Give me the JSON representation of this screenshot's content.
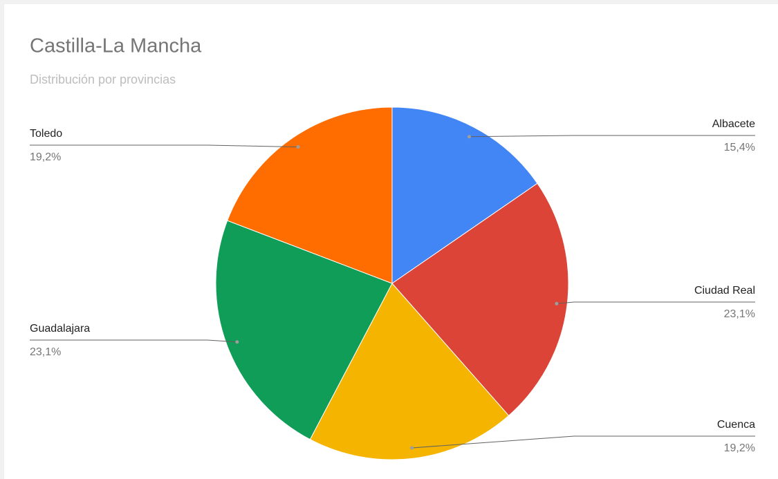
{
  "chart_data": {
    "type": "pie",
    "title": "Castilla-La Mancha",
    "subtitle": "Distribución por provincias",
    "categories": [
      "Albacete",
      "Ciudad Real",
      "Cuenca",
      "Guadalajara",
      "Toledo"
    ],
    "values": [
      15.4,
      23.1,
      19.2,
      23.1,
      19.2
    ],
    "value_labels": [
      "15,4%",
      "23,1%",
      "19,2%",
      "23,1%",
      "19,2%"
    ],
    "colors": [
      "#4285f4",
      "#db4437",
      "#f4b400",
      "#0f9d58",
      "#ff6d00"
    ]
  }
}
